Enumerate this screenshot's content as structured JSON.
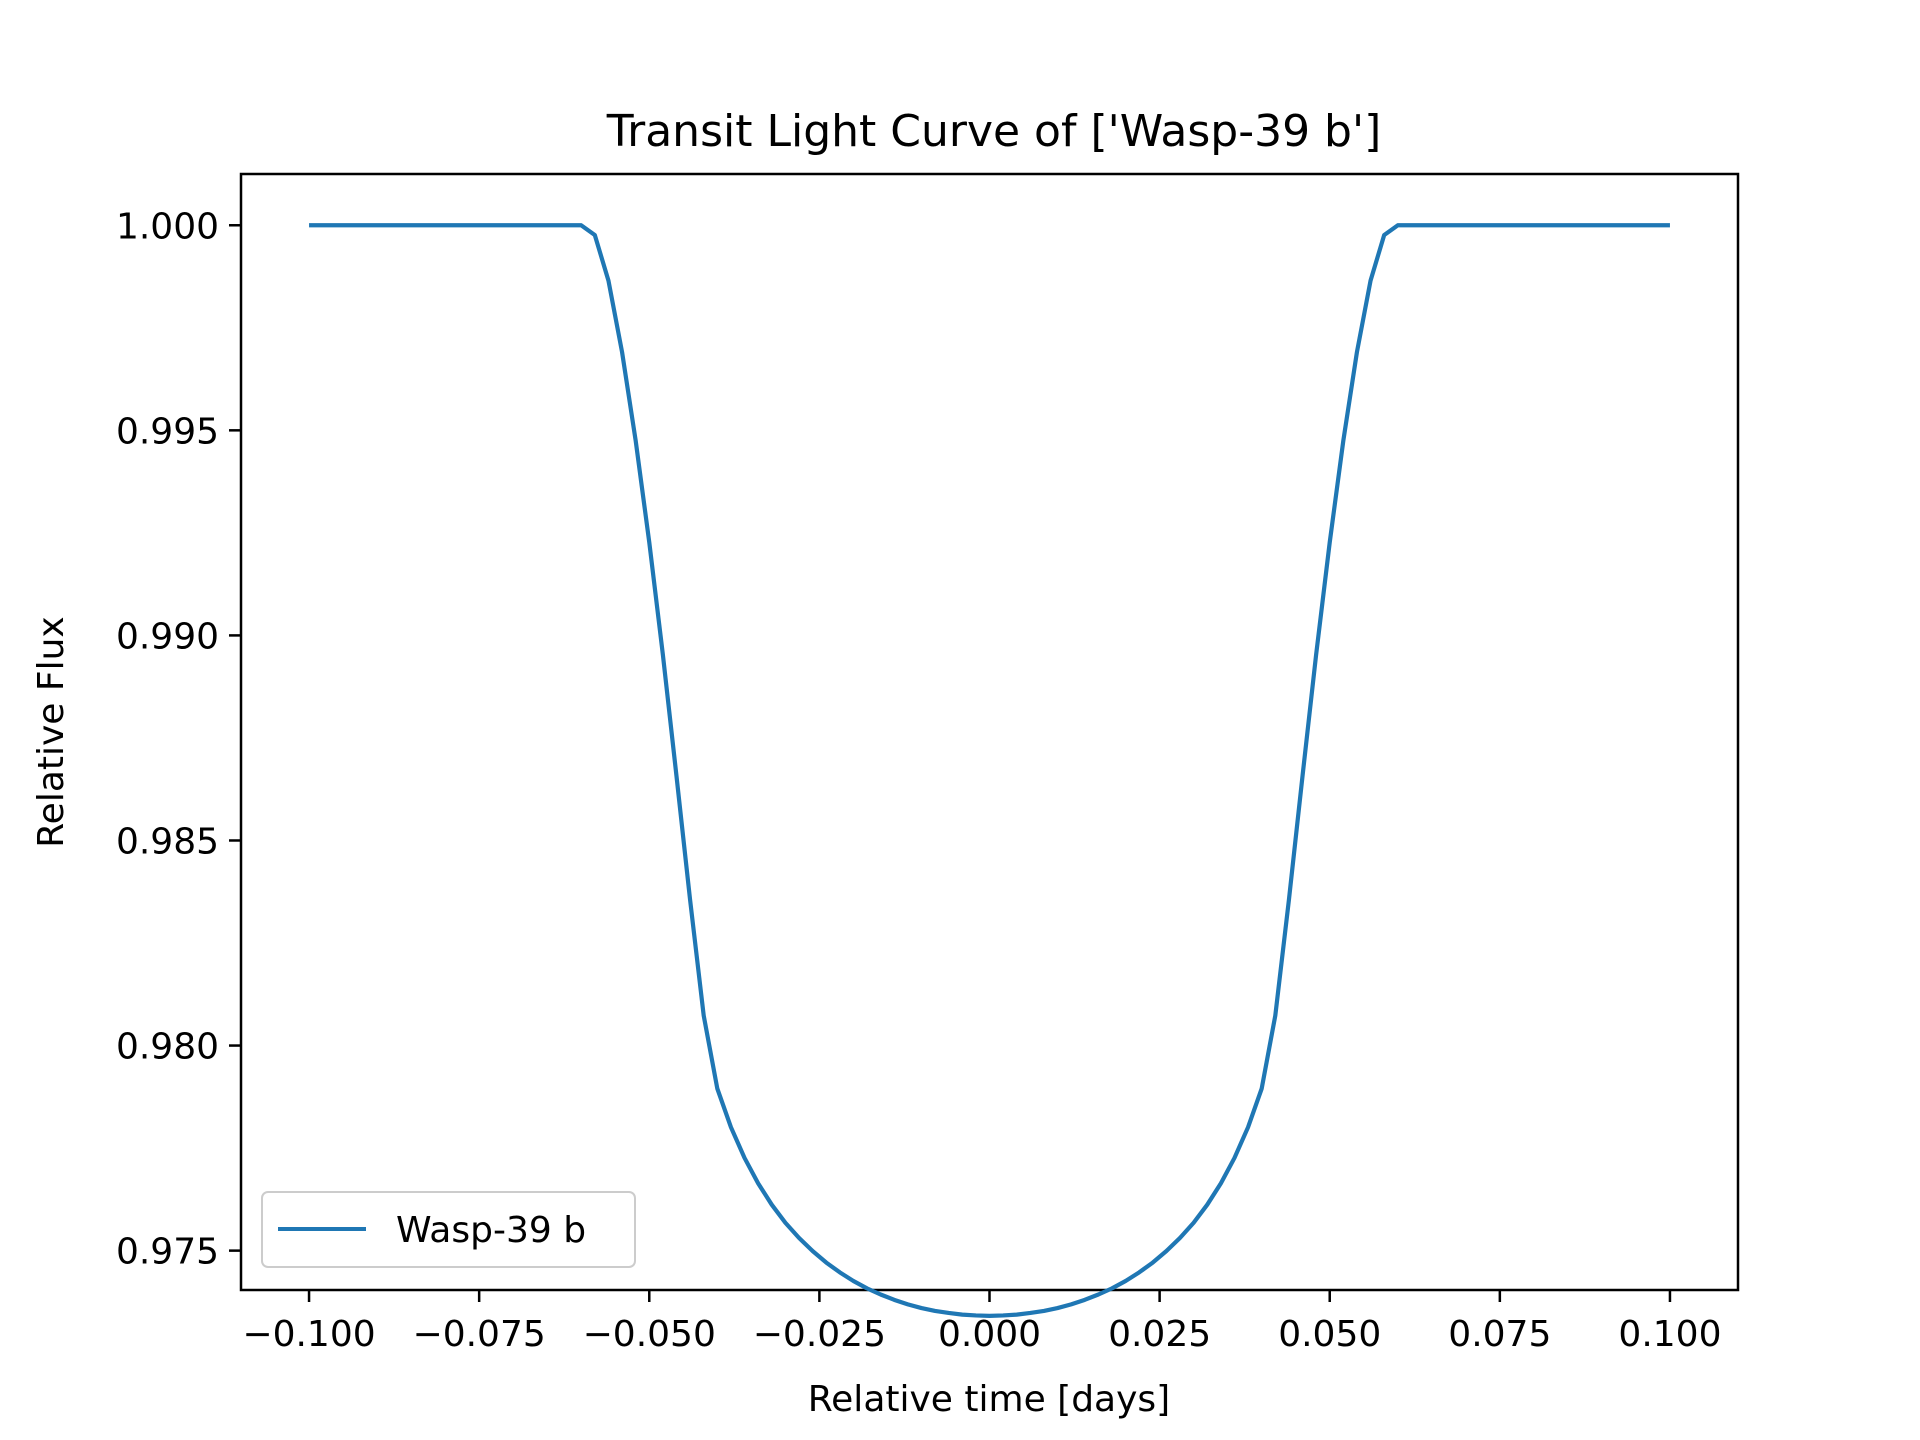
{
  "chart_data": {
    "type": "line",
    "title": "Transit Light Curve of ['Wasp-39 b']",
    "xlabel": "Relative time [days]",
    "ylabel": "Relative Flux",
    "xlim": [
      -0.11,
      0.11
    ],
    "ylim": [
      0.97404,
      1.00125
    ],
    "xticks": [
      "−0.100",
      "−0.075",
      "−0.050",
      "−0.025",
      "0.000",
      "0.025",
      "0.050",
      "0.075",
      "0.100"
    ],
    "xtick_values": [
      -0.1,
      -0.075,
      -0.05,
      -0.025,
      0.0,
      0.025,
      0.05,
      0.075,
      0.1
    ],
    "yticks": [
      "0.975",
      "0.980",
      "0.985",
      "0.990",
      "0.995",
      "1.000"
    ],
    "ytick_values": [
      0.975,
      0.98,
      0.985,
      0.99,
      0.995,
      1.0
    ],
    "grid": false,
    "legend_position": "lower-left",
    "series": [
      {
        "name": "Wasp-39 b",
        "color": "#1f77b4",
        "x": [
          -0.1,
          -0.06,
          -0.058,
          -0.056,
          -0.054,
          -0.052,
          -0.05,
          -0.048,
          -0.046,
          -0.044,
          -0.042,
          -0.04,
          -0.038,
          -0.036,
          -0.034,
          -0.032,
          -0.03,
          -0.028,
          -0.026,
          -0.024,
          -0.022,
          -0.02,
          -0.018,
          -0.016,
          -0.014,
          -0.012,
          -0.01,
          -0.008,
          -0.006,
          -0.004,
          -0.002,
          0.0,
          0.002,
          0.004,
          0.006,
          0.008,
          0.01,
          0.012,
          0.014,
          0.016,
          0.018,
          0.02,
          0.022,
          0.024,
          0.026,
          0.028,
          0.03,
          0.032,
          0.034,
          0.036,
          0.038,
          0.04,
          0.042,
          0.044,
          0.046,
          0.048,
          0.05,
          0.052,
          0.054,
          0.056,
          0.058,
          0.06,
          0.1
        ],
        "y": [
          1.0,
          1.0,
          0.99976,
          0.99865,
          0.99691,
          0.99475,
          0.99227,
          0.98953,
          0.98657,
          0.98355,
          0.98073,
          0.97895,
          0.97801,
          0.97726,
          0.97664,
          0.97612,
          0.97568,
          0.97531,
          0.97499,
          0.97471,
          0.97447,
          0.97426,
          0.97408,
          0.97393,
          0.9738,
          0.97369,
          0.9736,
          0.97353,
          0.97348,
          0.97344,
          0.97342,
          0.97341,
          0.97342,
          0.97344,
          0.97348,
          0.97353,
          0.9736,
          0.97369,
          0.9738,
          0.97393,
          0.97408,
          0.97426,
          0.97447,
          0.97471,
          0.97499,
          0.97531,
          0.97568,
          0.97612,
          0.97664,
          0.97726,
          0.97801,
          0.97895,
          0.98073,
          0.98355,
          0.98657,
          0.98953,
          0.99227,
          0.99475,
          0.99691,
          0.99865,
          0.99976,
          1.0,
          1.0
        ]
      }
    ]
  }
}
